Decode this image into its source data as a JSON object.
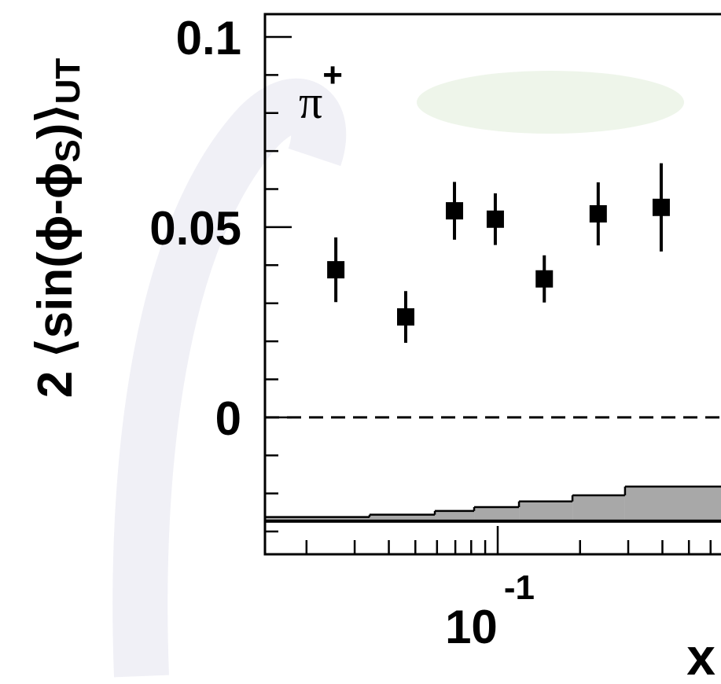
{
  "chart_data": {
    "type": "scatter",
    "ylabel": [
      "2 ⟨sin(ϕ-ϕ",
      "S",
      ")⟩",
      "UT"
    ],
    "xlabel": "x",
    "annotation": {
      "text": "π",
      "sup": "+"
    },
    "log_x": true,
    "xlim": [
      0.0141,
      0.655
    ],
    "ylim": [
      -0.036,
      0.106
    ],
    "xticks": [
      {
        "value": 0.1,
        "label": "10",
        "sup": "-1"
      }
    ],
    "xminor": [
      0.02,
      0.03,
      0.04,
      0.05,
      0.06,
      0.07,
      0.08,
      0.09,
      0.2,
      0.3,
      0.4,
      0.5,
      0.6
    ],
    "yticks": [
      0,
      0.05,
      0.1
    ],
    "yminor": [
      -0.03,
      -0.02,
      -0.01,
      0.01,
      0.02,
      0.03,
      0.04,
      0.06,
      0.07,
      0.08,
      0.09
    ],
    "hline": 0,
    "color": "#000000",
    "x": [
      0.0256,
      0.0461,
      0.0695,
      0.098,
      0.148,
      0.233,
      0.396
    ],
    "values": [
      0.0388,
      0.0264,
      0.0543,
      0.0521,
      0.0364,
      0.0535,
      0.0552
    ],
    "errors": [
      0.0085,
      0.0068,
      0.0076,
      0.0068,
      0.0062,
      0.0083,
      0.0116
    ],
    "band": {
      "color": "#a8a8a8",
      "base": -0.0273,
      "edges": [
        0.0141,
        0.034,
        0.0589,
        0.082,
        0.1196,
        0.1876,
        0.292,
        0.655
      ],
      "values": [
        -0.0262,
        -0.0256,
        -0.0246,
        -0.0236,
        -0.0221,
        -0.0205,
        -0.0182
      ]
    }
  }
}
